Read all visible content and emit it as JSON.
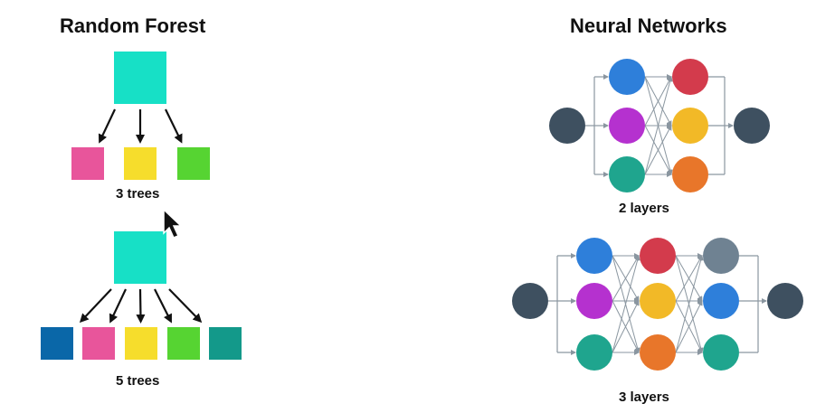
{
  "random_forest": {
    "title": "Random Forest",
    "diagrams": [
      {
        "caption": "3 trees",
        "root_color": "#17E0C6",
        "leaf_colors": [
          "#E8559B",
          "#F6DD2C",
          "#56D432"
        ]
      },
      {
        "caption": "5 trees",
        "root_color": "#17E0C6",
        "leaf_colors": [
          "#0A67A8",
          "#E8559B",
          "#F6DD2C",
          "#56D432",
          "#13998A"
        ]
      }
    ]
  },
  "neural_networks": {
    "title": "Neural Networks",
    "networks": [
      {
        "caption": "2 layers",
        "input_color": "#3E5060",
        "output_color": "#3E5060",
        "layers": [
          [
            "#2E7FDA",
            "#B531CF",
            "#1FA58E"
          ],
          [
            "#D33B4C",
            "#F2B927",
            "#E8762A"
          ]
        ]
      },
      {
        "caption": "3 layers",
        "input_color": "#3E5060",
        "output_color": "#3E5060",
        "layers": [
          [
            "#2E7FDA",
            "#B531CF",
            "#1FA58E"
          ],
          [
            "#D33B4C",
            "#F2B927",
            "#E8762A"
          ],
          [
            "#6F8292",
            "#2E7FDA",
            "#1FA58E"
          ]
        ]
      }
    ]
  },
  "cursor": {
    "icon": "mouse-pointer-icon"
  }
}
